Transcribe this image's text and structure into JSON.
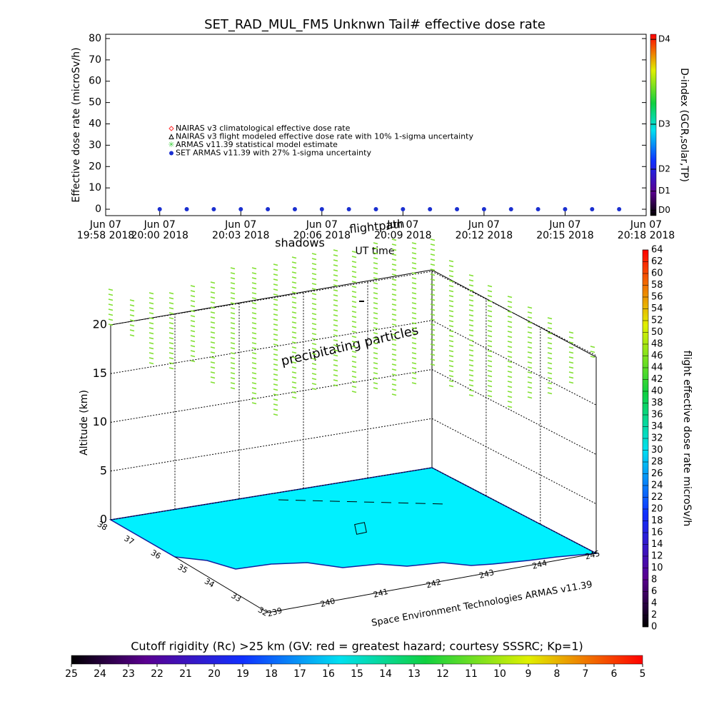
{
  "chart_data": [
    {
      "type": "scatter",
      "title": "SET_RAD_MUL_FM5 Unknwn Tail#  effective dose rate",
      "ylabel": "Effective dose rate (microSv/h)",
      "xlabel": "UT time",
      "xlim": [
        "19:58",
        "20:18"
      ],
      "xticks": [
        {
          "value": "19:58",
          "label": "Jun 07\n19:58 2018"
        },
        {
          "value": "20:00",
          "label": "Jun 07\n20:00 2018"
        },
        {
          "value": "20:03",
          "label": "Jun 07\n20:03 2018"
        },
        {
          "value": "20:06",
          "label": "Jun 07\n20:06 2018"
        },
        {
          "value": "20:09",
          "label": "Jun 07\n20:09 2018"
        },
        {
          "value": "20:12",
          "label": "Jun 07\n20:12 2018"
        },
        {
          "value": "20:15",
          "label": "Jun 07\n20:15 2018"
        },
        {
          "value": "20:18",
          "label": "Jun 07\n20:18 2018"
        }
      ],
      "ylim": [
        -3,
        82
      ],
      "yticks": [
        0,
        10,
        20,
        30,
        40,
        50,
        60,
        70,
        80
      ],
      "series": [
        {
          "name": "NAIRAS v3 climatological effective dose rate",
          "color": "#ff3030",
          "marker": "diamond"
        },
        {
          "name": "NAIRAS v3 flight modeled effective dose rate with 10% 1-sigma uncertainty",
          "color": "#000000",
          "marker": "triangle"
        },
        {
          "name": "ARMAS v11.39 statistical model estimate",
          "color": "#40d040",
          "marker": "star"
        },
        {
          "name": "SET ARMAS v11.39 with 27% 1-sigma uncertainty",
          "color": "#1a2fd0",
          "marker": "circle",
          "x": [
            "20:00",
            "20:01",
            "20:02",
            "20:03",
            "20:04",
            "20:05",
            "20:06",
            "20:07",
            "20:08",
            "20:09",
            "20:10",
            "20:11",
            "20:12",
            "20:13",
            "20:14",
            "20:15",
            "20:16",
            "20:17"
          ],
          "values": [
            0,
            0,
            0,
            0,
            0,
            0,
            0,
            0,
            0,
            0,
            0,
            0,
            0,
            0,
            0,
            0,
            0,
            0
          ]
        }
      ],
      "colorbar": {
        "label": "D-index (GCR,solar,TP)",
        "ticks": [
          "D0",
          "D1",
          "D2",
          "D3",
          "D4"
        ]
      }
    },
    {
      "type": "surface3d",
      "zlabel": "Altitude (km)",
      "zlim": [
        0,
        20
      ],
      "zticks": [
        0,
        5,
        10,
        15,
        20
      ],
      "xticks": [
        239,
        240,
        241,
        242,
        243,
        244,
        245
      ],
      "yticks": [
        38,
        37,
        36,
        35,
        34,
        33,
        32
      ],
      "annotations": [
        "precipitating particles",
        "shadows",
        "flightpath"
      ],
      "credit": "Space Environment Technologies ARMAS v11.39",
      "colorbar": {
        "label": "flight effective dose rate microSv/h",
        "lim": [
          0,
          64
        ],
        "ticks": [
          0,
          2,
          4,
          6,
          8,
          10,
          12,
          14,
          16,
          18,
          20,
          22,
          24,
          26,
          28,
          30,
          32,
          34,
          36,
          38,
          40,
          42,
          44,
          46,
          48,
          50,
          52,
          54,
          56,
          58,
          60,
          62,
          64
        ]
      },
      "cutoff_colorbar": {
        "title": "Cutoff rigidity (Rc) >25 km (GV: red = greatest hazard; courtesy SSSRC; Kp=1)",
        "lim": [
          25,
          5
        ],
        "ticks": [
          25,
          24,
          23,
          22,
          21,
          20,
          19,
          18,
          17,
          16,
          15,
          14,
          13,
          12,
          11,
          10,
          9,
          8,
          7,
          6,
          5
        ]
      }
    }
  ]
}
